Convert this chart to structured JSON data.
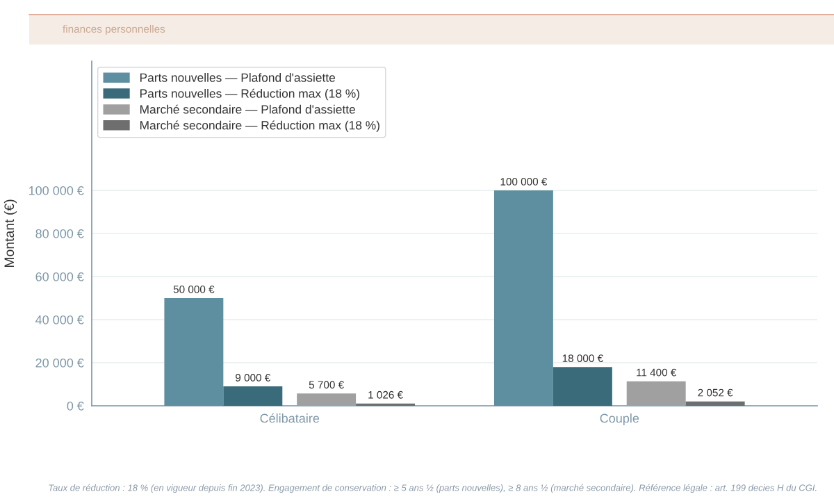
{
  "chart_data": {
    "type": "bar",
    "subtitle": "finances personnelles",
    "ylabel": "Montant (€)",
    "categories": [
      "Célibataire",
      "Couple"
    ],
    "series": [
      {
        "name": "Parts nouvelles — Plafond d'assiette",
        "color": "#5e8fa0",
        "values": [
          50000,
          100000
        ],
        "value_labels": [
          "50 000 €",
          "100 000 €"
        ]
      },
      {
        "name": "Parts nouvelles — Réduction max (18 %)",
        "color": "#3a6b7a",
        "values": [
          9000,
          18000
        ],
        "value_labels": [
          "9 000 €",
          "18 000 €"
        ]
      },
      {
        "name": "Marché secondaire — Plafond d'assiette",
        "color": "#a0a0a0",
        "values": [
          5700,
          11400
        ],
        "value_labels": [
          "5 700 €",
          "11 400 €"
        ]
      },
      {
        "name": "Marché secondaire — Réduction max (18 %)",
        "color": "#6e6e6e",
        "values": [
          1026,
          2052
        ],
        "value_labels": [
          "1 026 €",
          "2 052 €"
        ]
      }
    ],
    "ylim": [
      0,
      160000
    ],
    "yticks": [
      {
        "value": 0,
        "label": "0 €"
      },
      {
        "value": 20000,
        "label": "20 000 €"
      },
      {
        "value": 40000,
        "label": "40 000 €"
      },
      {
        "value": 60000,
        "label": "60 000 €"
      },
      {
        "value": 80000,
        "label": "80 000 €"
      },
      {
        "value": 100000,
        "label": "100 000 €"
      }
    ],
    "grid": "y",
    "legend": "top left",
    "annotations": [
      "Taux de réduction : 18 % (en vigueur depuis fin 2023). Engagement de conservation : ≥ 5 ans ½ (parts nouvelles), ≥ 8 ans ½ (marché secondaire). Référence légale : art. 199 decies H du CGI."
    ]
  }
}
